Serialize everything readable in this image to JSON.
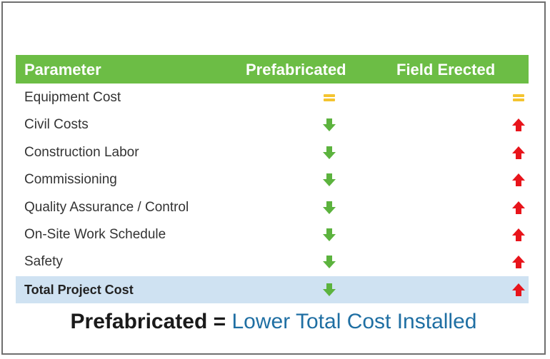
{
  "table": {
    "headers": {
      "parameter": "Parameter",
      "prefabricated": "Prefabricated",
      "field_erected": "Field Erected"
    },
    "rows": [
      {
        "label": "Equipment Cost",
        "prefabricated": "equal-icon",
        "field_erected": "equal-icon"
      },
      {
        "label": "Civil Costs",
        "prefabricated": "down-arrow-icon",
        "field_erected": "up-arrow-icon"
      },
      {
        "label": "Construction Labor",
        "prefabricated": "down-arrow-icon",
        "field_erected": "up-arrow-icon"
      },
      {
        "label": "Commissioning",
        "prefabricated": "down-arrow-icon",
        "field_erected": "up-arrow-icon"
      },
      {
        "label": "Quality Assurance / Control",
        "prefabricated": "down-arrow-icon",
        "field_erected": "up-arrow-icon"
      },
      {
        "label": "On-Site Work Schedule",
        "prefabricated": "down-arrow-icon",
        "field_erected": "up-arrow-icon"
      },
      {
        "label": "Safety",
        "prefabricated": "down-arrow-icon",
        "field_erected": "up-arrow-icon"
      },
      {
        "label": "Total Project Cost",
        "prefabricated": "down-arrow-icon",
        "field_erected": "up-arrow-icon"
      }
    ]
  },
  "footer": {
    "bold_text": "Prefabricated",
    "equals": "=",
    "blue_text": "Lower Total Cost Installed"
  },
  "colors": {
    "header_green": "#6cbd45",
    "down_arrow": "#5cb33e",
    "up_arrow": "#e8141b",
    "equal": "#f4c430",
    "total_row": "#cfe2f2",
    "footer_blue": "#1f6fa3"
  }
}
